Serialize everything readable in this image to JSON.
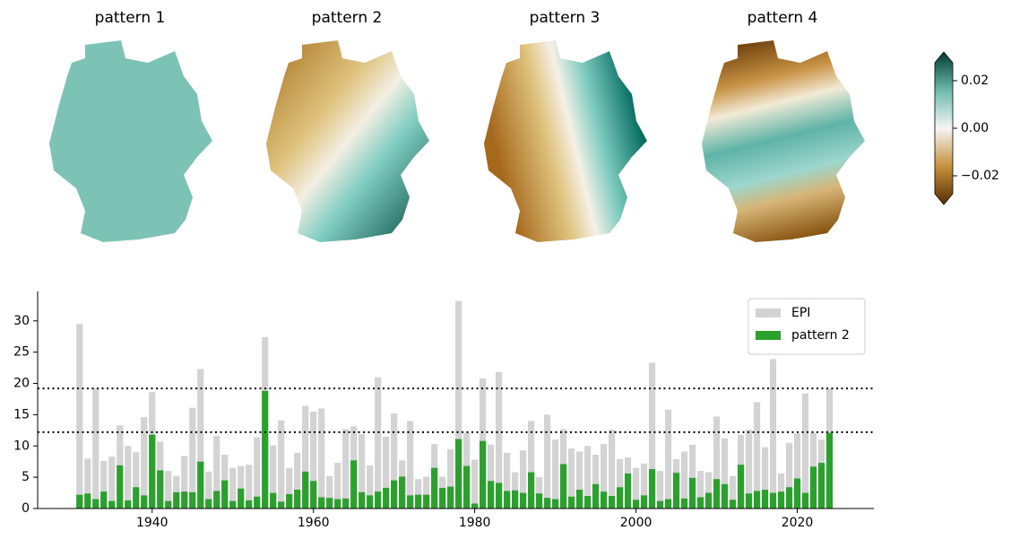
{
  "chart_data": [
    {
      "type": "map",
      "titles": [
        "pattern 1",
        "pattern 2",
        "pattern 3",
        "pattern 4"
      ],
      "colorbar": {
        "lim": [
          -0.03,
          0.03
        ],
        "ticks": [
          {
            "value": -0.02,
            "label": "−0.02"
          },
          {
            "value": 0,
            "label": "0.00"
          },
          {
            "value": 0.02,
            "label": "0.02"
          }
        ]
      }
    },
    {
      "type": "bar",
      "x": [
        1931,
        1932,
        1933,
        1934,
        1935,
        1936,
        1937,
        1938,
        1939,
        1940,
        1941,
        1942,
        1943,
        1944,
        1945,
        1946,
        1947,
        1948,
        1949,
        1950,
        1951,
        1952,
        1953,
        1954,
        1955,
        1956,
        1957,
        1958,
        1959,
        1960,
        1961,
        1962,
        1963,
        1964,
        1965,
        1966,
        1967,
        1968,
        1969,
        1970,
        1971,
        1972,
        1973,
        1974,
        1975,
        1976,
        1977,
        1978,
        1979,
        1980,
        1981,
        1982,
        1983,
        1984,
        1985,
        1986,
        1987,
        1988,
        1989,
        1990,
        1991,
        1992,
        1993,
        1994,
        1995,
        1996,
        1997,
        1998,
        1999,
        2000,
        2001,
        2002,
        2003,
        2004,
        2005,
        2006,
        2007,
        2008,
        2009,
        2010,
        2011,
        2012,
        2013,
        2014,
        2015,
        2016,
        2017,
        2018,
        2019,
        2020,
        2021,
        2022,
        2023,
        2024
      ],
      "series": [
        {
          "name": "EPI",
          "color": "#d3d3d3",
          "values": [
            29.5,
            8,
            19.2,
            7.6,
            8.3,
            13.3,
            10,
            9,
            14.6,
            18.6,
            10.7,
            6,
            5.2,
            8.4,
            16.1,
            22.3,
            5.9,
            11.6,
            8.6,
            6.5,
            6.8,
            7,
            11.4,
            27.4,
            10.1,
            14.1,
            6.5,
            8.9,
            16.4,
            15.5,
            16,
            5.2,
            7.3,
            12.7,
            13.1,
            11.9,
            6.9,
            21,
            11.5,
            15.2,
            7.7,
            14,
            4.7,
            5.1,
            10.3,
            5.1,
            9.5,
            33.2,
            12.1,
            7.8,
            20.8,
            10.2,
            21.8,
            8.9,
            5.8,
            9.3,
            14,
            5,
            15,
            11,
            12.7,
            9.6,
            9.1,
            10,
            8.6,
            10.3,
            12.6,
            7.9,
            8.2,
            6.5,
            7.2,
            23.3,
            6,
            15.8,
            7.9,
            9.1,
            10.2,
            6,
            5.8,
            14.7,
            11.2,
            5.2,
            11.8,
            12.6,
            17,
            9.8,
            23.9,
            5.6,
            10.5,
            12,
            18.4,
            12.1,
            11,
            19.2
          ]
        },
        {
          "name": "pattern 2",
          "color": "#2ca02c",
          "values": [
            2.2,
            2.4,
            1.5,
            2.7,
            1.2,
            6.9,
            1.3,
            3.4,
            2.1,
            11.8,
            6.1,
            1.2,
            2.6,
            2.7,
            2.6,
            7.5,
            1.5,
            2.8,
            4.5,
            1.2,
            3.2,
            1.3,
            1.9,
            18.8,
            2.5,
            1.1,
            2.3,
            3,
            5.9,
            4.4,
            1.8,
            1.7,
            1.5,
            1.6,
            7.7,
            2.6,
            2.1,
            2.7,
            3.3,
            4.5,
            5.1,
            2.1,
            2.2,
            2.2,
            6.5,
            3.3,
            3.5,
            11.1,
            6.8,
            0.8,
            10.8,
            4.4,
            4.1,
            2.8,
            2.9,
            2.5,
            5.8,
            2.4,
            1.7,
            1.5,
            7.1,
            1.9,
            3,
            2,
            3.9,
            2.7,
            2,
            3.4,
            5.6,
            1.4,
            2.1,
            6.3,
            1.2,
            1.5,
            5.7,
            1.6,
            4.9,
            1.8,
            2.5,
            4.7,
            3.9,
            1.4,
            7,
            2.4,
            2.8,
            3,
            2.5,
            2.7,
            3.4,
            4.8,
            2.5,
            6.7,
            7.3,
            12.1
          ]
        }
      ],
      "hlines": [
        19.2,
        12.2
      ],
      "xlim": [
        1925.8,
        2029.5
      ],
      "xticks": [
        1940,
        1960,
        1980,
        2000,
        2020
      ],
      "ylim": [
        0,
        34.7
      ],
      "yticks": [
        0,
        5,
        10,
        15,
        20,
        25,
        30
      ],
      "legend": "upper right"
    }
  ]
}
